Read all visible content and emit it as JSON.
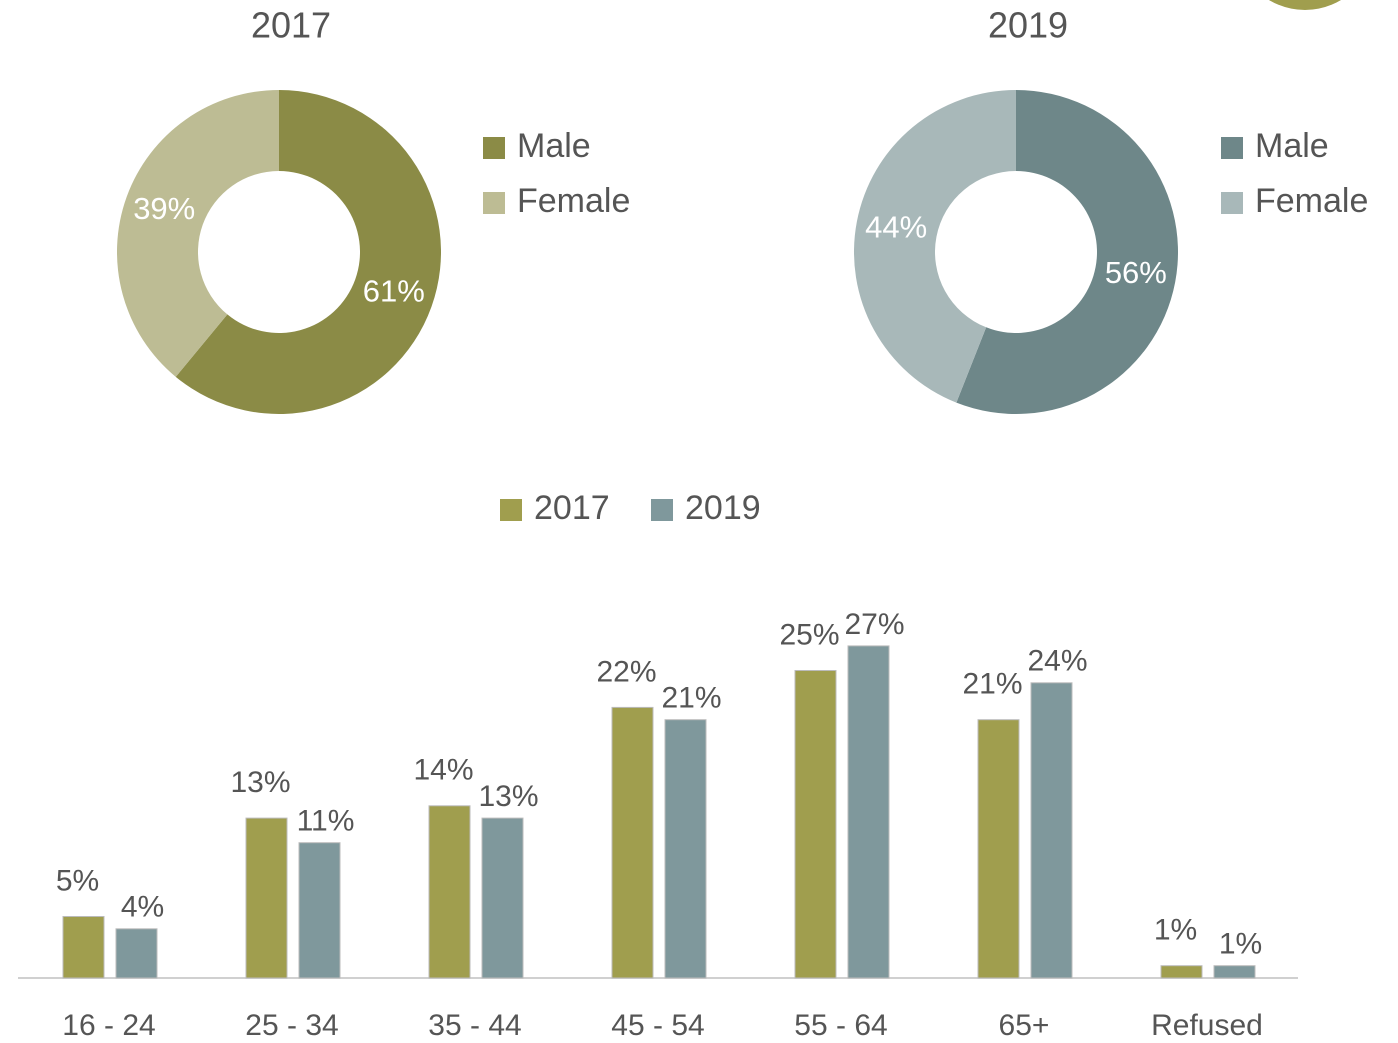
{
  "chart_data": [
    {
      "type": "pie",
      "title": "2017",
      "categories": [
        "Male",
        "Female"
      ],
      "values": [
        61,
        39
      ],
      "value_labels": [
        "61%",
        "39%"
      ],
      "colors": [
        "#8b8b46",
        "#bdbc94"
      ]
    },
    {
      "type": "pie",
      "title": "2019",
      "categories": [
        "Male",
        "Female"
      ],
      "values": [
        56,
        44
      ],
      "value_labels": [
        "56%",
        "44%"
      ],
      "colors": [
        "#6e8789",
        "#a8b8b9"
      ]
    },
    {
      "type": "bar",
      "categories": [
        "16 - 24",
        "25 - 34",
        "35 - 44",
        "45 - 54",
        "55 - 64",
        "65+",
        "Refused"
      ],
      "series": [
        {
          "name": "2017",
          "color": "#a09e4e",
          "values": [
            5,
            13,
            14,
            22,
            25,
            21,
            1
          ],
          "value_labels": [
            "5%",
            "13%",
            "14%",
            "22%",
            "25%",
            "21%",
            "1%"
          ]
        },
        {
          "name": "2019",
          "color": "#7f989c",
          "values": [
            4,
            11,
            13,
            21,
            27,
            24,
            1
          ],
          "value_labels": [
            "4%",
            "11%",
            "13%",
            "21%",
            "27%",
            "24%",
            "1%"
          ]
        }
      ]
    }
  ]
}
